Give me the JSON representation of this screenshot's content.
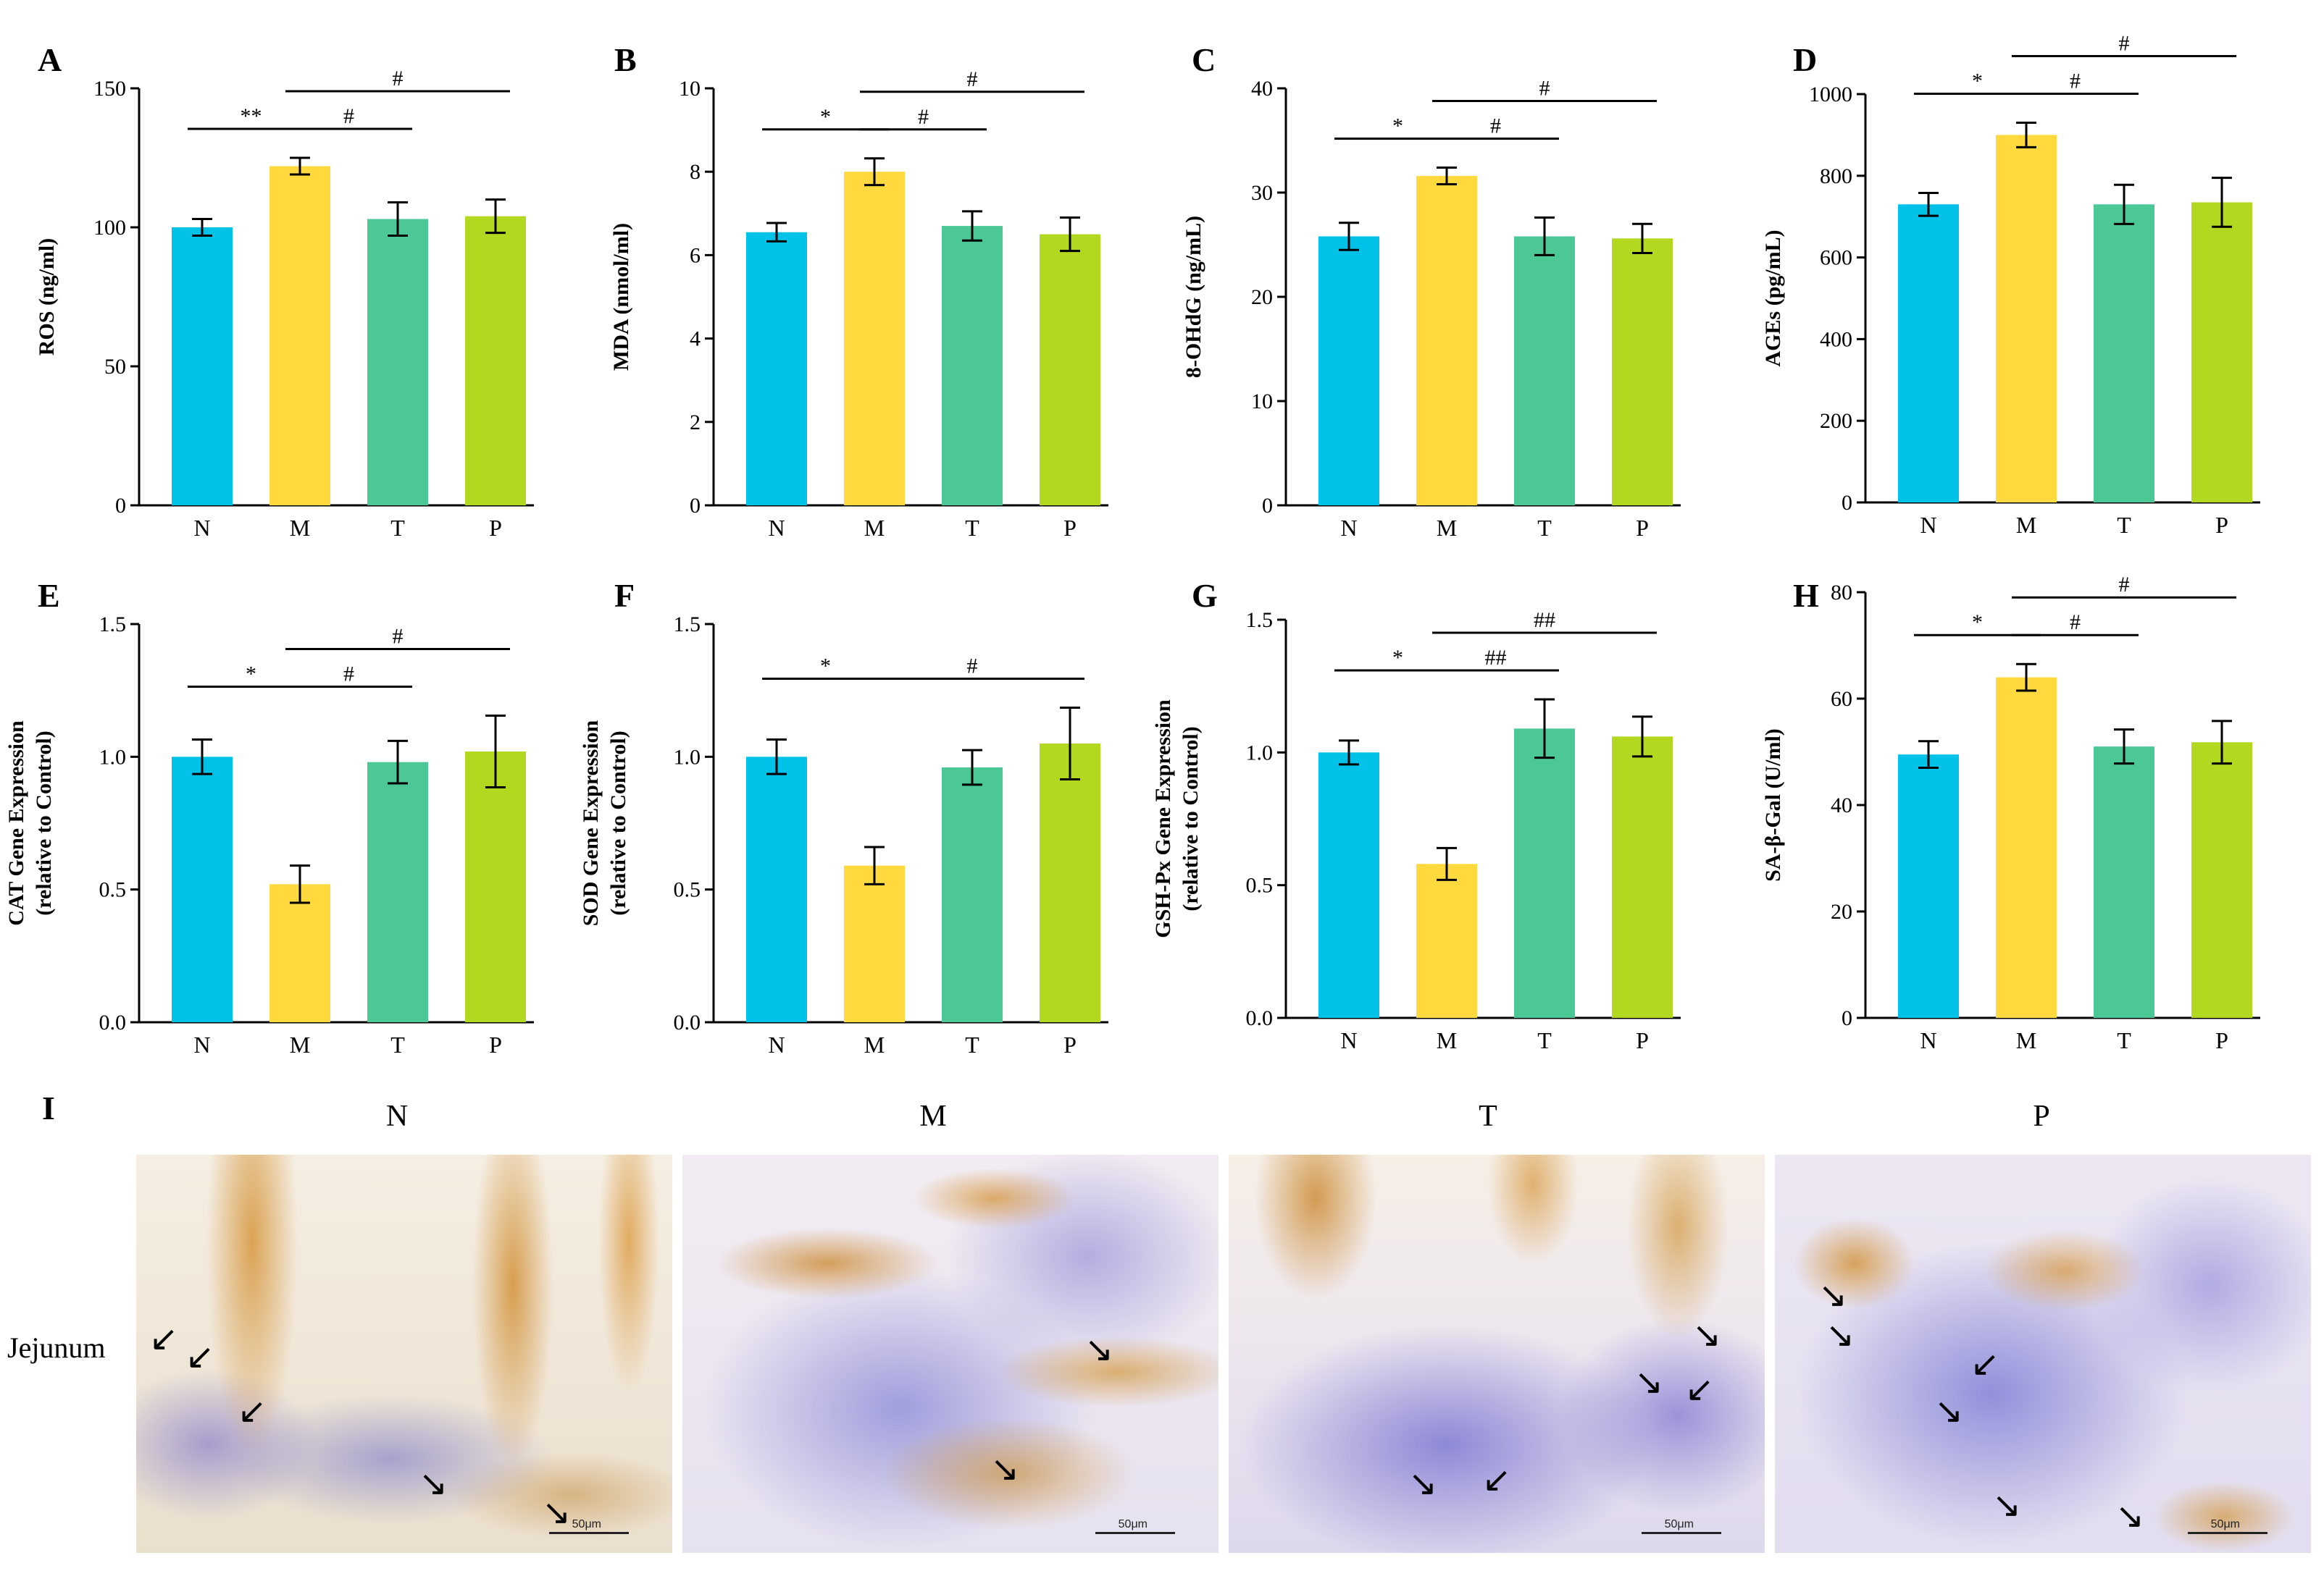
{
  "colors": {
    "N": "#00c1e8",
    "M": "#ffd93d",
    "T": "#4cc896",
    "P": "#b2d81f"
  },
  "chart_data": [
    {
      "type": "bar",
      "panel": "A",
      "ylabel": "ROS (ng/ml)",
      "ylim": [
        0,
        150
      ],
      "yticks": [
        "0",
        "50",
        "100",
        "150"
      ],
      "categories": [
        "N",
        "M",
        "T",
        "P"
      ],
      "values": [
        100,
        122,
        103,
        104
      ],
      "errors": [
        3,
        3,
        6,
        6
      ],
      "significance": [
        {
          "from": 0,
          "to": 1,
          "label": "**",
          "level": 0
        },
        {
          "from": 1,
          "to": 2,
          "label": "#",
          "level": 0
        },
        {
          "from": 1,
          "to": 3,
          "label": "#",
          "level": 1
        }
      ]
    },
    {
      "type": "bar",
      "panel": "B",
      "ylabel": "MDA (nmol/ml)",
      "ylim": [
        0,
        10
      ],
      "yticks": [
        "0",
        "2",
        "4",
        "6",
        "8",
        "10"
      ],
      "categories": [
        "N",
        "M",
        "T",
        "P"
      ],
      "values": [
        6.55,
        8.0,
        6.7,
        6.5
      ],
      "errors": [
        0.22,
        0.32,
        0.35,
        0.4
      ],
      "significance": [
        {
          "from": 0,
          "to": 1,
          "label": "*",
          "level": 0
        },
        {
          "from": 1,
          "to": 2,
          "label": "#",
          "level": 0
        },
        {
          "from": 1,
          "to": 3,
          "label": "#",
          "level": 1
        }
      ]
    },
    {
      "type": "bar",
      "panel": "C",
      "ylabel": "8-OHdG (ng/mL)",
      "ylim": [
        0,
        40
      ],
      "yticks": [
        "0",
        "10",
        "20",
        "30",
        "40"
      ],
      "categories": [
        "N",
        "M",
        "T",
        "P"
      ],
      "values": [
        25.8,
        31.6,
        25.8,
        25.6
      ],
      "errors": [
        1.3,
        0.8,
        1.8,
        1.4
      ],
      "significance": [
        {
          "from": 0,
          "to": 1,
          "label": "*",
          "level": 0
        },
        {
          "from": 1,
          "to": 2,
          "label": "#",
          "level": 0
        },
        {
          "from": 1,
          "to": 3,
          "label": "#",
          "level": 1
        }
      ]
    },
    {
      "type": "bar",
      "panel": "D",
      "ylabel": "AGEs (pg/mL)",
      "ylim": [
        0,
        1000
      ],
      "yticks": [
        "0",
        "200",
        "400",
        "600",
        "800",
        "1000"
      ],
      "categories": [
        "N",
        "M",
        "T",
        "P"
      ],
      "values": [
        730,
        900,
        730,
        735
      ],
      "errors": [
        28,
        30,
        48,
        60
      ],
      "significance": [
        {
          "from": 0,
          "to": 1,
          "label": "*",
          "level": 0
        },
        {
          "from": 1,
          "to": 2,
          "label": "#",
          "level": 0
        },
        {
          "from": 1,
          "to": 3,
          "label": "#",
          "level": 1
        }
      ]
    },
    {
      "type": "bar",
      "panel": "E",
      "ylabel": "CAT Gene Expression",
      "ylabel2": "(relative to Control)",
      "ylim": [
        0,
        1.5
      ],
      "yticks": [
        "0.0",
        "0.5",
        "1.0",
        "1.5"
      ],
      "categories": [
        "N",
        "M",
        "T",
        "P"
      ],
      "values": [
        1.0,
        0.52,
        0.98,
        1.02
      ],
      "errors": [
        0.065,
        0.07,
        0.08,
        0.135
      ],
      "significance": [
        {
          "from": 0,
          "to": 1,
          "label": "*",
          "level": 0
        },
        {
          "from": 1,
          "to": 2,
          "label": "#",
          "level": 0
        },
        {
          "from": 1,
          "to": 3,
          "label": "#",
          "level": 1
        }
      ]
    },
    {
      "type": "bar",
      "panel": "F",
      "ylabel": "SOD Gene Expression",
      "ylabel2": "(relative to Control)",
      "ylim": [
        0,
        1.5
      ],
      "yticks": [
        "0.0",
        "0.5",
        "1.0",
        "1.5"
      ],
      "categories": [
        "N",
        "M",
        "T",
        "P"
      ],
      "values": [
        1.0,
        0.59,
        0.96,
        1.05
      ],
      "errors": [
        0.065,
        0.07,
        0.065,
        0.135
      ],
      "significance": [
        {
          "from": 0,
          "to": 1,
          "label": "*",
          "level": 0
        },
        {
          "from": 1,
          "to": 3,
          "label": "#",
          "level": 0
        }
      ]
    },
    {
      "type": "bar",
      "panel": "G",
      "ylabel": "GSH-Px Gene Expression",
      "ylabel2": "(relative to Control)",
      "ylim": [
        0,
        1.5
      ],
      "yticks": [
        "0.0",
        "0.5",
        "1.0",
        "1.5"
      ],
      "categories": [
        "N",
        "M",
        "T",
        "P"
      ],
      "values": [
        1.0,
        0.58,
        1.09,
        1.06
      ],
      "errors": [
        0.045,
        0.06,
        0.11,
        0.075
      ],
      "significance": [
        {
          "from": 0,
          "to": 1,
          "label": "*",
          "level": 0
        },
        {
          "from": 1,
          "to": 2,
          "label": "##",
          "level": 0
        },
        {
          "from": 1,
          "to": 3,
          "label": "##",
          "level": 1
        }
      ]
    },
    {
      "type": "bar",
      "panel": "H",
      "ylabel": "SA-β-Gal (U/ml)",
      "ylim": [
        0,
        80
      ],
      "yticks": [
        "0",
        "20",
        "40",
        "60",
        "80"
      ],
      "categories": [
        "N",
        "M",
        "T",
        "P"
      ],
      "values": [
        49.5,
        64,
        51,
        51.8
      ],
      "errors": [
        2.5,
        2.5,
        3.2,
        4.0
      ],
      "significance": [
        {
          "from": 0,
          "to": 1,
          "label": "*",
          "level": 0
        },
        {
          "from": 1,
          "to": 2,
          "label": "#",
          "level": 0
        },
        {
          "from": 1,
          "to": 3,
          "label": "#",
          "level": 1
        }
      ]
    }
  ],
  "micrographs": {
    "panel_letter": "I",
    "row_label": "Jejunum",
    "scale_label": "50μm",
    "groups": [
      "N",
      "M",
      "T",
      "P"
    ]
  }
}
